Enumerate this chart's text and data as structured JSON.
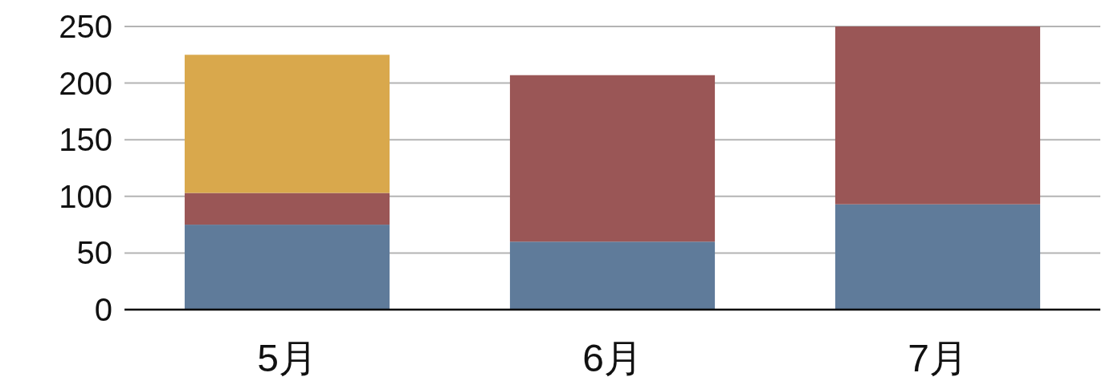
{
  "chart_data": {
    "type": "bar",
    "stacked": true,
    "categories": [
      "5月",
      "6月",
      "7月"
    ],
    "series": [
      {
        "color": "#5f7b9a",
        "values": [
          75,
          60,
          93
        ]
      },
      {
        "color": "#9a5656",
        "values": [
          28,
          147,
          157
        ]
      },
      {
        "color": "#d9a84c",
        "values": [
          122,
          null,
          null
        ]
      }
    ],
    "ylim": [
      0,
      250
    ],
    "yticks": [
      0,
      50,
      100,
      150,
      200,
      250
    ],
    "grid": "y"
  }
}
